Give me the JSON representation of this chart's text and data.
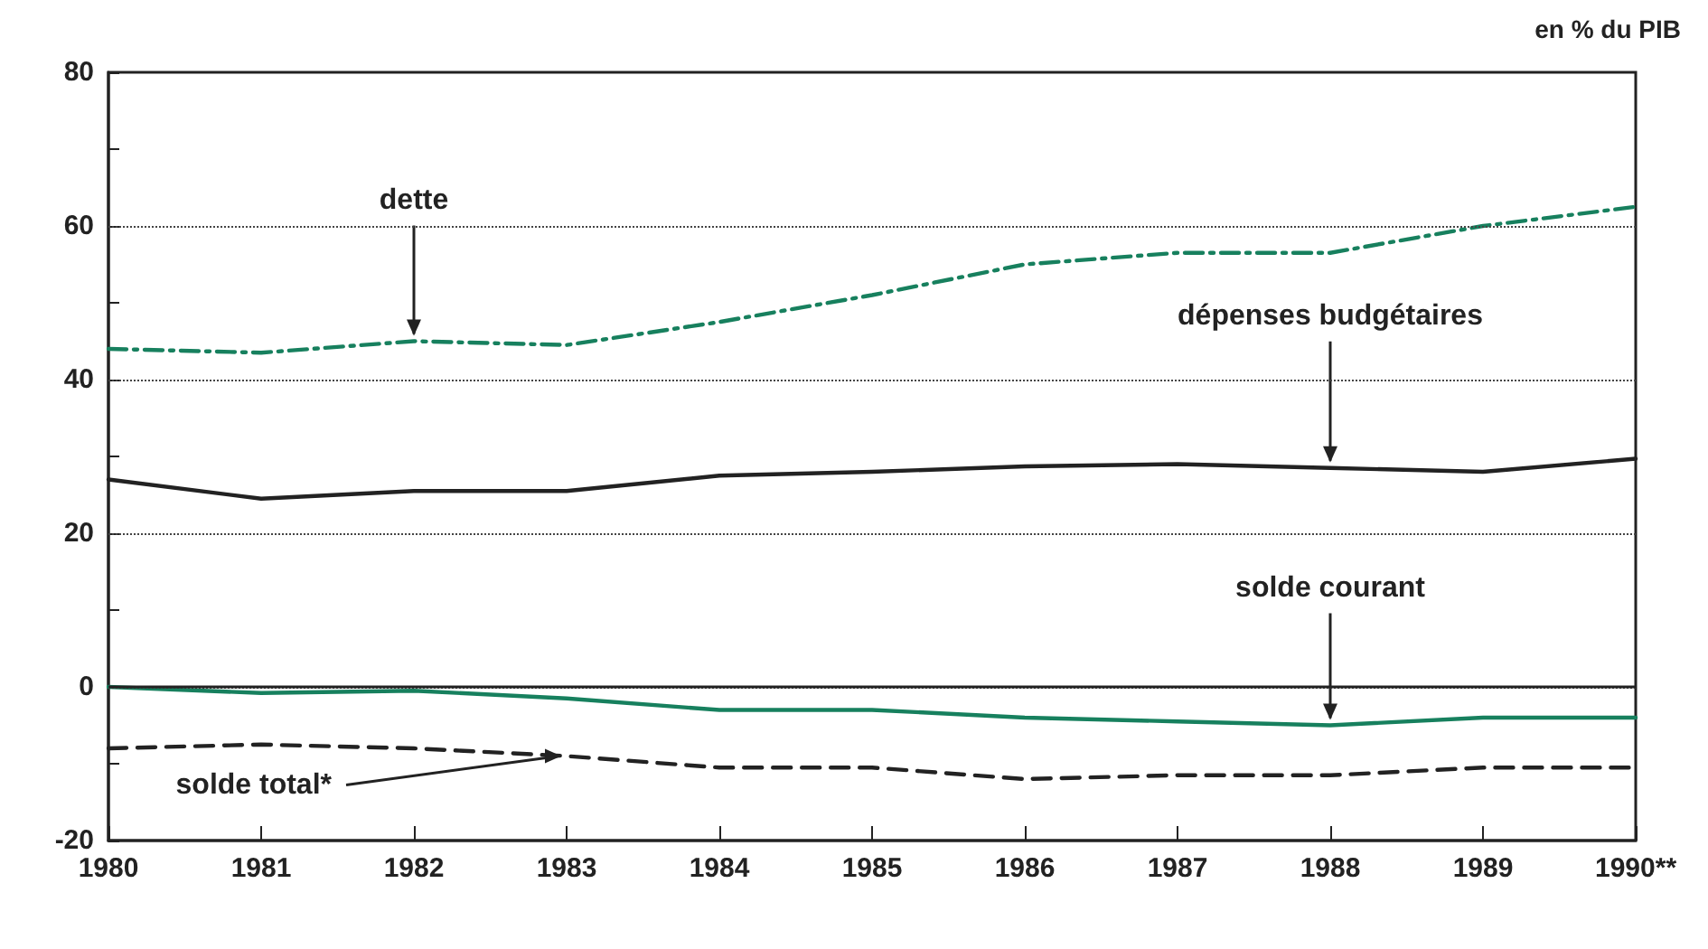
{
  "chart_data": {
    "type": "line",
    "subtitle": "en % du PIB",
    "categories": [
      "1980",
      "1981",
      "1982",
      "1983",
      "1984",
      "1985",
      "1986",
      "1987",
      "1988",
      "1989",
      "1990**"
    ],
    "series": [
      {
        "color": "#17805e",
        "line_style": "dashdot",
        "values": [
          44,
          43.5,
          45,
          44.5,
          47.5,
          51,
          55,
          56.5,
          56.5,
          60,
          62.5
        ]
      },
      {
        "color": "#222222",
        "line_style": "solid",
        "values": [
          27,
          24.5,
          25.5,
          25.5,
          27.5,
          28,
          28.7,
          29,
          28.5,
          28,
          29.7
        ]
      },
      {
        "color": "#17805e",
        "line_style": "solid",
        "values": [
          0,
          -0.8,
          -0.5,
          -1.5,
          -3,
          -3,
          -4,
          -4.5,
          -5,
          -4,
          -4
        ]
      },
      {
        "color": "#222222",
        "line_style": "dashed",
        "values": [
          -8,
          -7.5,
          -8,
          -9,
          -10.5,
          -10.5,
          -12,
          -11.5,
          -11.5,
          -10.5,
          -10.5
        ]
      }
    ],
    "annotations": [
      {
        "text": "dette",
        "x": "1982",
        "y": 45
      },
      {
        "text": "dépenses budgétaires",
        "x": "1988",
        "y": 28.5
      },
      {
        "text": "solde courant",
        "x": "1988",
        "y": -5
      },
      {
        "text": "solde total*",
        "x": "1983",
        "y": -9
      }
    ],
    "ylim": [
      -20,
      80
    ],
    "yticks": [
      -20,
      {
        "value": -10,
        "label": null
      },
      0,
      {
        "value": 10,
        "label": null
      },
      20,
      {
        "value": 30,
        "label": null
      },
      40,
      {
        "value": 50,
        "label": null
      },
      60,
      {
        "value": 70,
        "label": null
      },
      80
    ],
    "grid": "y",
    "marker": "none",
    "ref_lines": [
      {
        "axis": "y",
        "value": 0,
        "label": null,
        "color": "#222222"
      }
    ]
  }
}
